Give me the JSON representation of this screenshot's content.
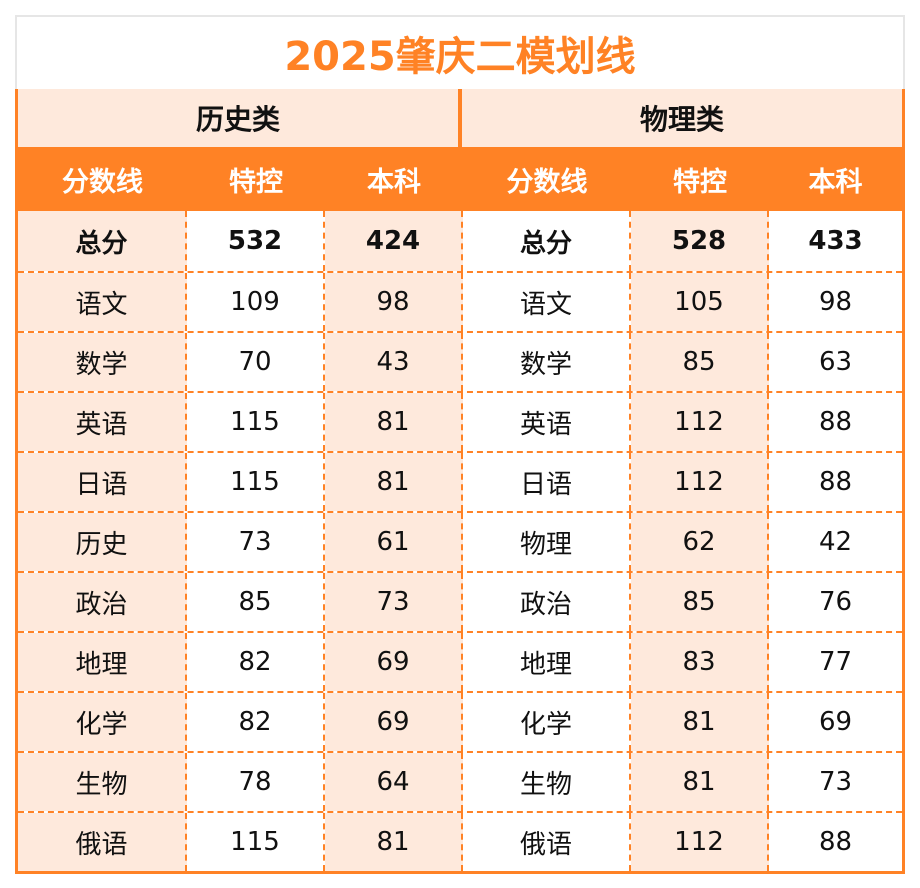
{
  "title": "2025肇庆二模划线",
  "categories": {
    "left": "历史类",
    "right": "物理类"
  },
  "headers": {
    "left": [
      "分数线",
      "特控",
      "本科"
    ],
    "right": [
      "分数线",
      "特控",
      "本科"
    ]
  },
  "colors": {
    "accent": "#ff8225",
    "peach": "#fee9dc",
    "white": "#ffffff"
  },
  "rows": [
    {
      "left": [
        "总分",
        "532",
        "424"
      ],
      "right": [
        "总分",
        "528",
        "433"
      ]
    },
    {
      "left": [
        "语文",
        "109",
        "98"
      ],
      "right": [
        "语文",
        "105",
        "98"
      ]
    },
    {
      "left": [
        "数学",
        "70",
        "43"
      ],
      "right": [
        "数学",
        "85",
        "63"
      ]
    },
    {
      "left": [
        "英语",
        "115",
        "81"
      ],
      "right": [
        "英语",
        "112",
        "88"
      ]
    },
    {
      "left": [
        "日语",
        "115",
        "81"
      ],
      "right": [
        "日语",
        "112",
        "88"
      ]
    },
    {
      "left": [
        "历史",
        "73",
        "61"
      ],
      "right": [
        "物理",
        "62",
        "42"
      ]
    },
    {
      "left": [
        "政治",
        "85",
        "73"
      ],
      "right": [
        "政治",
        "85",
        "76"
      ]
    },
    {
      "left": [
        "地理",
        "82",
        "69"
      ],
      "right": [
        "地理",
        "83",
        "77"
      ]
    },
    {
      "left": [
        "化学",
        "82",
        "69"
      ],
      "right": [
        "化学",
        "81",
        "69"
      ]
    },
    {
      "left": [
        "生物",
        "78",
        "64"
      ],
      "right": [
        "生物",
        "81",
        "73"
      ]
    },
    {
      "left": [
        "俄语",
        "115",
        "81"
      ],
      "right": [
        "俄语",
        "112",
        "88"
      ]
    }
  ]
}
